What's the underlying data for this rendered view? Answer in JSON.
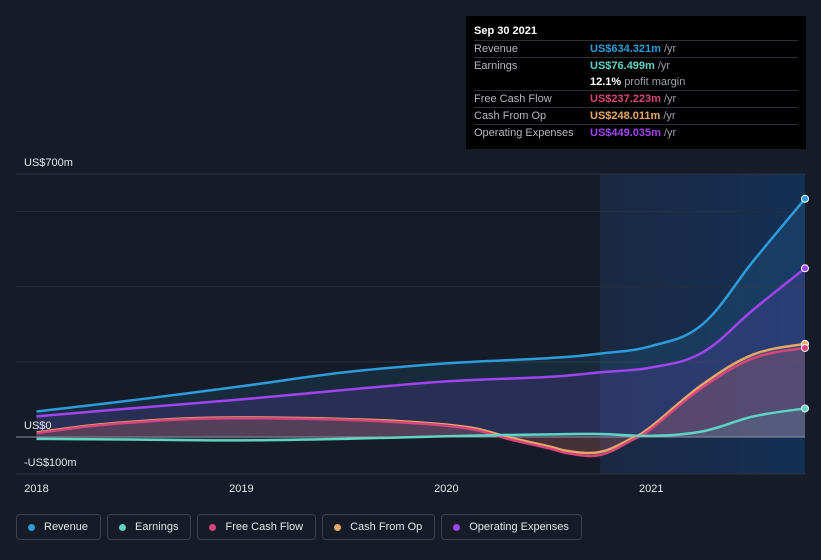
{
  "tooltip": {
    "date": "Sep 30 2021",
    "rows": [
      {
        "label": "Revenue",
        "value": "US$634.321m",
        "unit": "/yr",
        "color": "#2d9cdb"
      },
      {
        "label": "Earnings",
        "value": "US$76.499m",
        "unit": "/yr",
        "color": "#5fd4c4"
      },
      {
        "label": "",
        "value": "12.1%",
        "unit": "profit margin",
        "color": "#ffffff"
      },
      {
        "label": "Free Cash Flow",
        "value": "US$237.223m",
        "unit": "/yr",
        "color": "#d6457c"
      },
      {
        "label": "Cash From Op",
        "value": "US$248.011m",
        "unit": "/yr",
        "color": "#e8a968"
      },
      {
        "label": "Operating Expenses",
        "value": "US$449.035m",
        "unit": "/yr",
        "color": "#a044f0"
      }
    ]
  },
  "legend": [
    {
      "label": "Revenue",
      "color": "#2d9cdb"
    },
    {
      "label": "Earnings",
      "color": "#5fd4c4"
    },
    {
      "label": "Free Cash Flow",
      "color": "#d6457c"
    },
    {
      "label": "Cash From Op",
      "color": "#e8a968"
    },
    {
      "label": "Operating Expenses",
      "color": "#a044f0"
    }
  ],
  "chart_data": {
    "type": "area",
    "title": "",
    "xlabel": "",
    "ylabel": "",
    "y_tick_labels": {
      "top": "US$700m",
      "zero": "US$0",
      "bottom": "-US$100m"
    },
    "ylim": [
      -100,
      700
    ],
    "xlim": [
      2017.9,
      2021.75
    ],
    "x_ticks": [
      2018,
      2019,
      2020,
      2021
    ],
    "x_tick_labels": [
      "2018",
      "2019",
      "2020",
      "2021"
    ],
    "highlight_start": 2020.75,
    "series": [
      {
        "name": "Revenue",
        "color": "#2d9cdb",
        "x": [
          2018,
          2018.5,
          2019,
          2019.5,
          2020,
          2020.5,
          2020.75,
          2021,
          2021.25,
          2021.5,
          2021.75
        ],
        "values": [
          68,
          100,
          135,
          172,
          196,
          210,
          222,
          242,
          300,
          470,
          634
        ]
      },
      {
        "name": "Operating Expenses",
        "color": "#a044f0",
        "x": [
          2018,
          2018.5,
          2019,
          2019.5,
          2020,
          2020.5,
          2020.75,
          2021,
          2021.25,
          2021.5,
          2021.75
        ],
        "values": [
          55,
          78,
          100,
          125,
          148,
          160,
          172,
          185,
          225,
          340,
          449
        ]
      },
      {
        "name": "Cash From Op",
        "color": "#e8a968",
        "x": [
          2018,
          2018.25,
          2018.5,
          2018.75,
          2019,
          2019.25,
          2019.5,
          2019.75,
          2020,
          2020.15,
          2020.3,
          2020.5,
          2020.6,
          2020.75,
          2020.9,
          2021,
          2021.25,
          2021.5,
          2021.75
        ],
        "values": [
          12,
          30,
          42,
          50,
          52,
          51,
          48,
          43,
          33,
          22,
          0,
          -25,
          -38,
          -40,
          -5,
          28,
          140,
          220,
          248
        ]
      },
      {
        "name": "Free Cash Flow",
        "color": "#d6457c",
        "x": [
          2018,
          2018.25,
          2018.5,
          2018.75,
          2019,
          2019.25,
          2019.5,
          2019.75,
          2020,
          2020.15,
          2020.3,
          2020.5,
          2020.6,
          2020.75,
          2020.9,
          2021,
          2021.25,
          2021.5,
          2021.75
        ],
        "values": [
          10,
          28,
          40,
          48,
          50,
          49,
          46,
          40,
          30,
          18,
          -5,
          -30,
          -44,
          -48,
          -10,
          22,
          132,
          210,
          237
        ]
      },
      {
        "name": "Earnings",
        "color": "#5fd4c4",
        "x": [
          2018,
          2018.5,
          2019,
          2019.5,
          2020,
          2020.25,
          2020.5,
          2020.75,
          2021,
          2021.25,
          2021.5,
          2021.75
        ],
        "values": [
          -5,
          -7,
          -9,
          -5,
          2,
          5,
          7,
          8,
          3,
          15,
          55,
          76
        ]
      }
    ]
  }
}
